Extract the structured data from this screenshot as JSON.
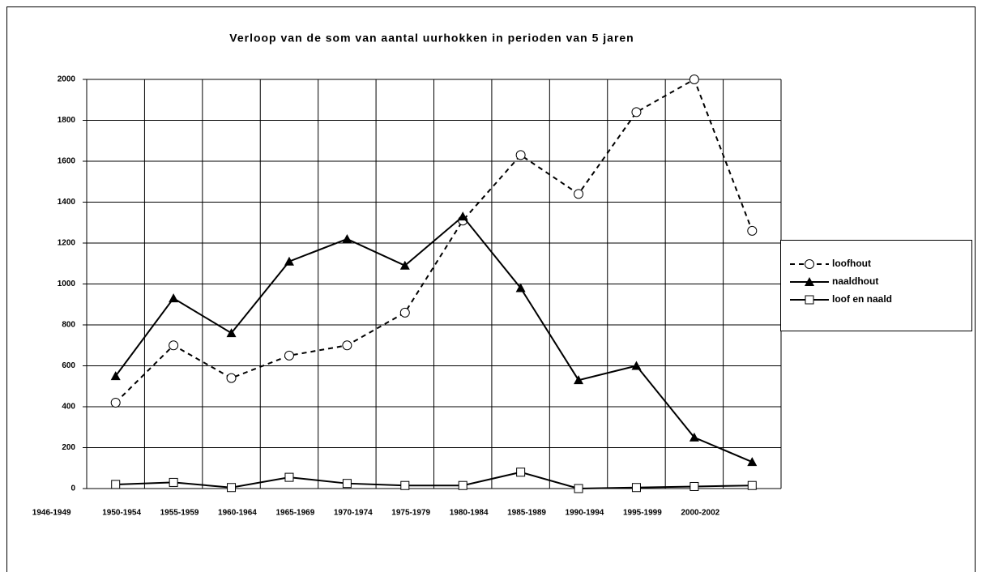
{
  "chart_data": {
    "type": "line",
    "title": "Verloop van de som van aantal uurhokken in perioden van 5 jaren",
    "categories": [
      "1946-1949",
      "1950-1954",
      "1955-1959",
      "1960-1964",
      "1965-1969",
      "1970-1974",
      "1975-1979",
      "1980-1984",
      "1985-1989",
      "1990-1994",
      "1995-1999",
      "2000-2002"
    ],
    "series": [
      {
        "name": "loofhout",
        "color": "#000000",
        "dash": true,
        "marker": "circle",
        "values": [
          420,
          700,
          540,
          650,
          700,
          860,
          1310,
          1630,
          1440,
          1840,
          2000,
          1260
        ]
      },
      {
        "name": "naaldhout",
        "color": "#000000",
        "dash": false,
        "marker": "triangle",
        "values": [
          550,
          930,
          760,
          1110,
          1220,
          1090,
          1330,
          980,
          530,
          600,
          250,
          130
        ]
      },
      {
        "name": "loof en naald",
        "color": "#000000",
        "dash": false,
        "marker": "square",
        "values": [
          20,
          30,
          5,
          55,
          25,
          15,
          15,
          80,
          0,
          5,
          10,
          15
        ]
      }
    ],
    "ylim": [
      0,
      2000
    ],
    "yticks": [
      0,
      200,
      400,
      600,
      800,
      1000,
      1200,
      1400,
      1600,
      1800,
      2000
    ],
    "grid": true,
    "legend": "right"
  }
}
